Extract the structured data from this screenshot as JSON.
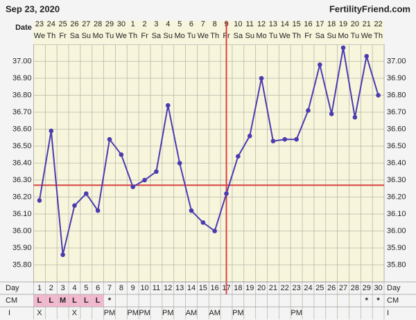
{
  "header": {
    "date": "Sep 23, 2020",
    "site": "FertilityFriend.com"
  },
  "chart_data": {
    "type": "line",
    "date_label": "Date",
    "dates": [
      "23",
      "24",
      "25",
      "26",
      "27",
      "28",
      "29",
      "30",
      "1",
      "2",
      "3",
      "4",
      "5",
      "6",
      "7",
      "8",
      "9",
      "10",
      "11",
      "12",
      "13",
      "14",
      "15",
      "16",
      "17",
      "18",
      "19",
      "20",
      "21",
      "22"
    ],
    "weekdays": [
      "We",
      "Th",
      "Fr",
      "Sa",
      "Su",
      "Mo",
      "Tu",
      "We",
      "Th",
      "Fr",
      "Sa",
      "Su",
      "Mo",
      "Tu",
      "We",
      "Th",
      "Fr",
      "Sa",
      "Su",
      "Mo",
      "Tu",
      "We",
      "Th",
      "Fr",
      "Sa",
      "Su",
      "Mo",
      "Tu",
      "We",
      "Th"
    ],
    "x_label": "Day",
    "categories": [
      "1",
      "2",
      "3",
      "4",
      "5",
      "6",
      "7",
      "8",
      "9",
      "10",
      "11",
      "12",
      "13",
      "14",
      "15",
      "16",
      "17",
      "18",
      "19",
      "20",
      "21",
      "22",
      "23",
      "24",
      "25",
      "26",
      "27",
      "28",
      "29",
      "30"
    ],
    "series": [
      {
        "color": "#4b3bb0",
        "values": [
          36.18,
          36.59,
          35.86,
          36.15,
          36.22,
          36.12,
          36.54,
          36.45,
          36.26,
          36.3,
          36.35,
          36.74,
          36.4,
          36.12,
          36.05,
          36.0,
          36.22,
          36.44,
          36.56,
          36.9,
          36.53,
          36.54,
          36.54,
          36.71,
          36.98,
          36.69,
          37.08,
          36.67,
          37.03,
          36.8
        ]
      }
    ],
    "coverline": 36.27,
    "ovulation_day": 17,
    "marker_color": "#d9423f",
    "cm_label": "CM",
    "cm": [
      "L",
      "L",
      "M",
      "L",
      "L",
      "L",
      "*",
      null,
      null,
      null,
      null,
      null,
      null,
      null,
      null,
      null,
      null,
      null,
      null,
      null,
      null,
      null,
      null,
      null,
      null,
      null,
      null,
      null,
      "*",
      "*"
    ],
    "i_label": "I",
    "intercourse": [
      "X",
      null,
      null,
      "X",
      null,
      null,
      "PM",
      null,
      "PM",
      "PM",
      null,
      "PM",
      null,
      "AM",
      null,
      "AM",
      null,
      "PM",
      null,
      null,
      null,
      null,
      "PM",
      null,
      null,
      null,
      null,
      null,
      null,
      null
    ],
    "ylim": [
      35.7,
      37.1
    ],
    "yticks": [
      {
        "value": 35.8,
        "label": "35.80"
      },
      {
        "value": 35.9,
        "label": "35.90"
      },
      {
        "value": 36.0,
        "label": "36.00"
      },
      {
        "value": 36.1,
        "label": "36.10"
      },
      {
        "value": 36.2,
        "label": "36.20"
      },
      {
        "value": 36.3,
        "label": "36.30"
      },
      {
        "value": 36.4,
        "label": "36.40"
      },
      {
        "value": 36.5,
        "label": "36.50"
      },
      {
        "value": 36.6,
        "label": "36.60"
      },
      {
        "value": 36.7,
        "label": "36.70"
      },
      {
        "value": 36.8,
        "label": "36.80"
      },
      {
        "value": 36.9,
        "label": "36.90"
      },
      {
        "value": 37.0,
        "label": "37.00"
      }
    ],
    "grid": true
  }
}
